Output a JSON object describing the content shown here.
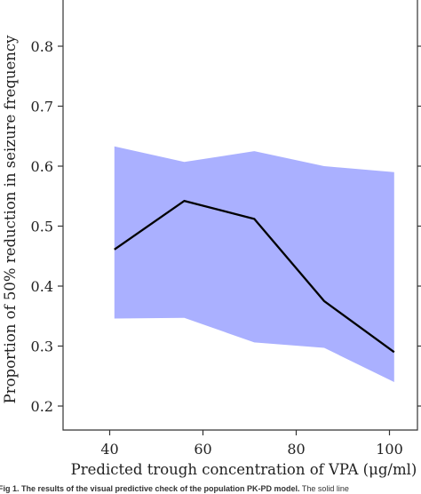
{
  "chart_data": {
    "type": "line",
    "xlabel": "Predicted trough concentration of VPA (μg/ml)",
    "ylabel": "Proportion of 50% reduction in seizure frequency",
    "xlim": [
      30,
      106
    ],
    "ylim": [
      0.16,
      0.88
    ],
    "x_ticks": [
      "40",
      "60",
      "80",
      "100"
    ],
    "y_ticks": [
      "0.2",
      "0.3",
      "0.4",
      "0.5",
      "0.6",
      "0.7",
      "0.8"
    ],
    "x_tick_values": [
      40,
      60,
      80,
      100
    ],
    "y_tick_values": [
      0.2,
      0.3,
      0.4,
      0.5,
      0.6,
      0.7,
      0.8
    ],
    "band": {
      "x": [
        41,
        56,
        71,
        86,
        101
      ],
      "upper": [
        0.633,
        0.607,
        0.625,
        0.6,
        0.59
      ],
      "lower": [
        0.346,
        0.347,
        0.306,
        0.297,
        0.24
      ],
      "color": "#aab0ff"
    },
    "series": [
      {
        "x": [
          41,
          56,
          71,
          86,
          101
        ],
        "values": [
          0.461,
          0.542,
          0.512,
          0.375,
          0.29
        ],
        "color": "#000000"
      }
    ],
    "grid": false
  },
  "caption": {
    "bold": "Fig 1. The results of the visual predictive check of the population PK-PD model.",
    "text": " The solid line"
  }
}
